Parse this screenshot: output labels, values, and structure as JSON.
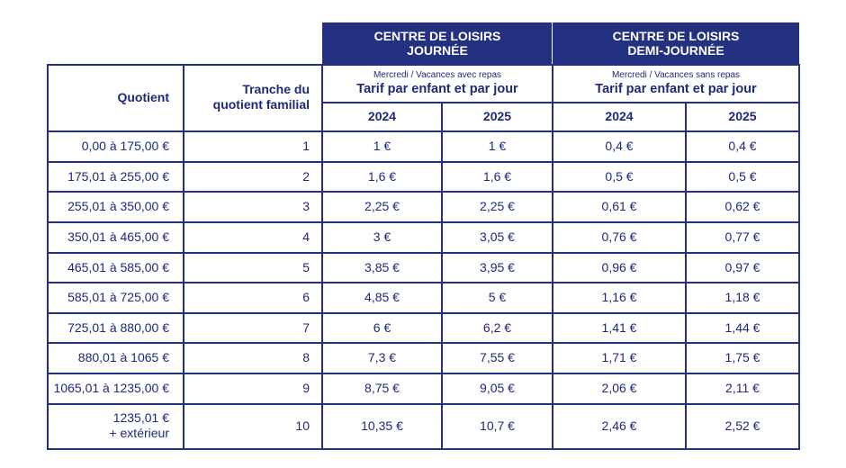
{
  "headers": {
    "quotient": "Quotient",
    "tranche_line1": "Tranche du",
    "tranche_line2": "quotient familial",
    "journee": {
      "line1": "CENTRE DE LOISIRS",
      "line2": "JOURNÉE",
      "note": "Mercredi / Vacances avec repas",
      "tarif": "Tarif par enfant et par jour",
      "years": [
        "2024",
        "2025"
      ]
    },
    "demi": {
      "line1": "CENTRE DE LOISIRS",
      "line2": "DEMI-JOURNÉE",
      "note": "Mercredi / Vacances sans repas",
      "tarif": "Tarif par enfant et par jour",
      "years": [
        "2024",
        "2025"
      ]
    }
  },
  "rows": [
    {
      "quotient": "0,00 à 175,00 €",
      "tranche": "1",
      "j2024": "1 €",
      "j2025": "1 €",
      "d2024": "0,4 €",
      "d2025": "0,4 €"
    },
    {
      "quotient": "175,01 à 255,00 €",
      "tranche": "2",
      "j2024": "1,6 €",
      "j2025": "1,6 €",
      "d2024": "0,5 €",
      "d2025": "0,5 €"
    },
    {
      "quotient": "255,01 à 350,00 €",
      "tranche": "3",
      "j2024": "2,25 €",
      "j2025": "2,25 €",
      "d2024": "0,61 €",
      "d2025": "0,62 €"
    },
    {
      "quotient": "350,01 à 465,00 €",
      "tranche": "4",
      "j2024": "3 €",
      "j2025": "3,05 €",
      "d2024": "0,76 €",
      "d2025": "0,77 €"
    },
    {
      "quotient": "465,01 à 585,00 €",
      "tranche": "5",
      "j2024": "3,85 €",
      "j2025": "3,95 €",
      "d2024": "0,96 €",
      "d2025": "0,97 €"
    },
    {
      "quotient": "585,01 à 725,00 €",
      "tranche": "6",
      "j2024": "4,85 €",
      "j2025": "5 €",
      "d2024": "1,16 €",
      "d2025": "1,18 €"
    },
    {
      "quotient": "725,01 à 880,00 €",
      "tranche": "7",
      "j2024": "6 €",
      "j2025": "6,2 €",
      "d2024": "1,41 €",
      "d2025": "1,44 €"
    },
    {
      "quotient": "880,01 à 1065 €",
      "tranche": "8",
      "j2024": "7,3 €",
      "j2025": "7,55 €",
      "d2024": "1,71 €",
      "d2025": "1,75 €"
    },
    {
      "quotient": "1065,01 à 1235,00 €",
      "tranche": "9",
      "j2024": "8,75 €",
      "j2025": "9,05 €",
      "d2024": "2,06 €",
      "d2025": "2,11 €"
    },
    {
      "quotient": "1235,01 €",
      "quotient_line2": "+ extérieur",
      "tranche": "10",
      "j2024": "10,35 €",
      "j2025": "10,7 €",
      "d2024": "2,46 €",
      "d2025": "2,52 €"
    }
  ]
}
